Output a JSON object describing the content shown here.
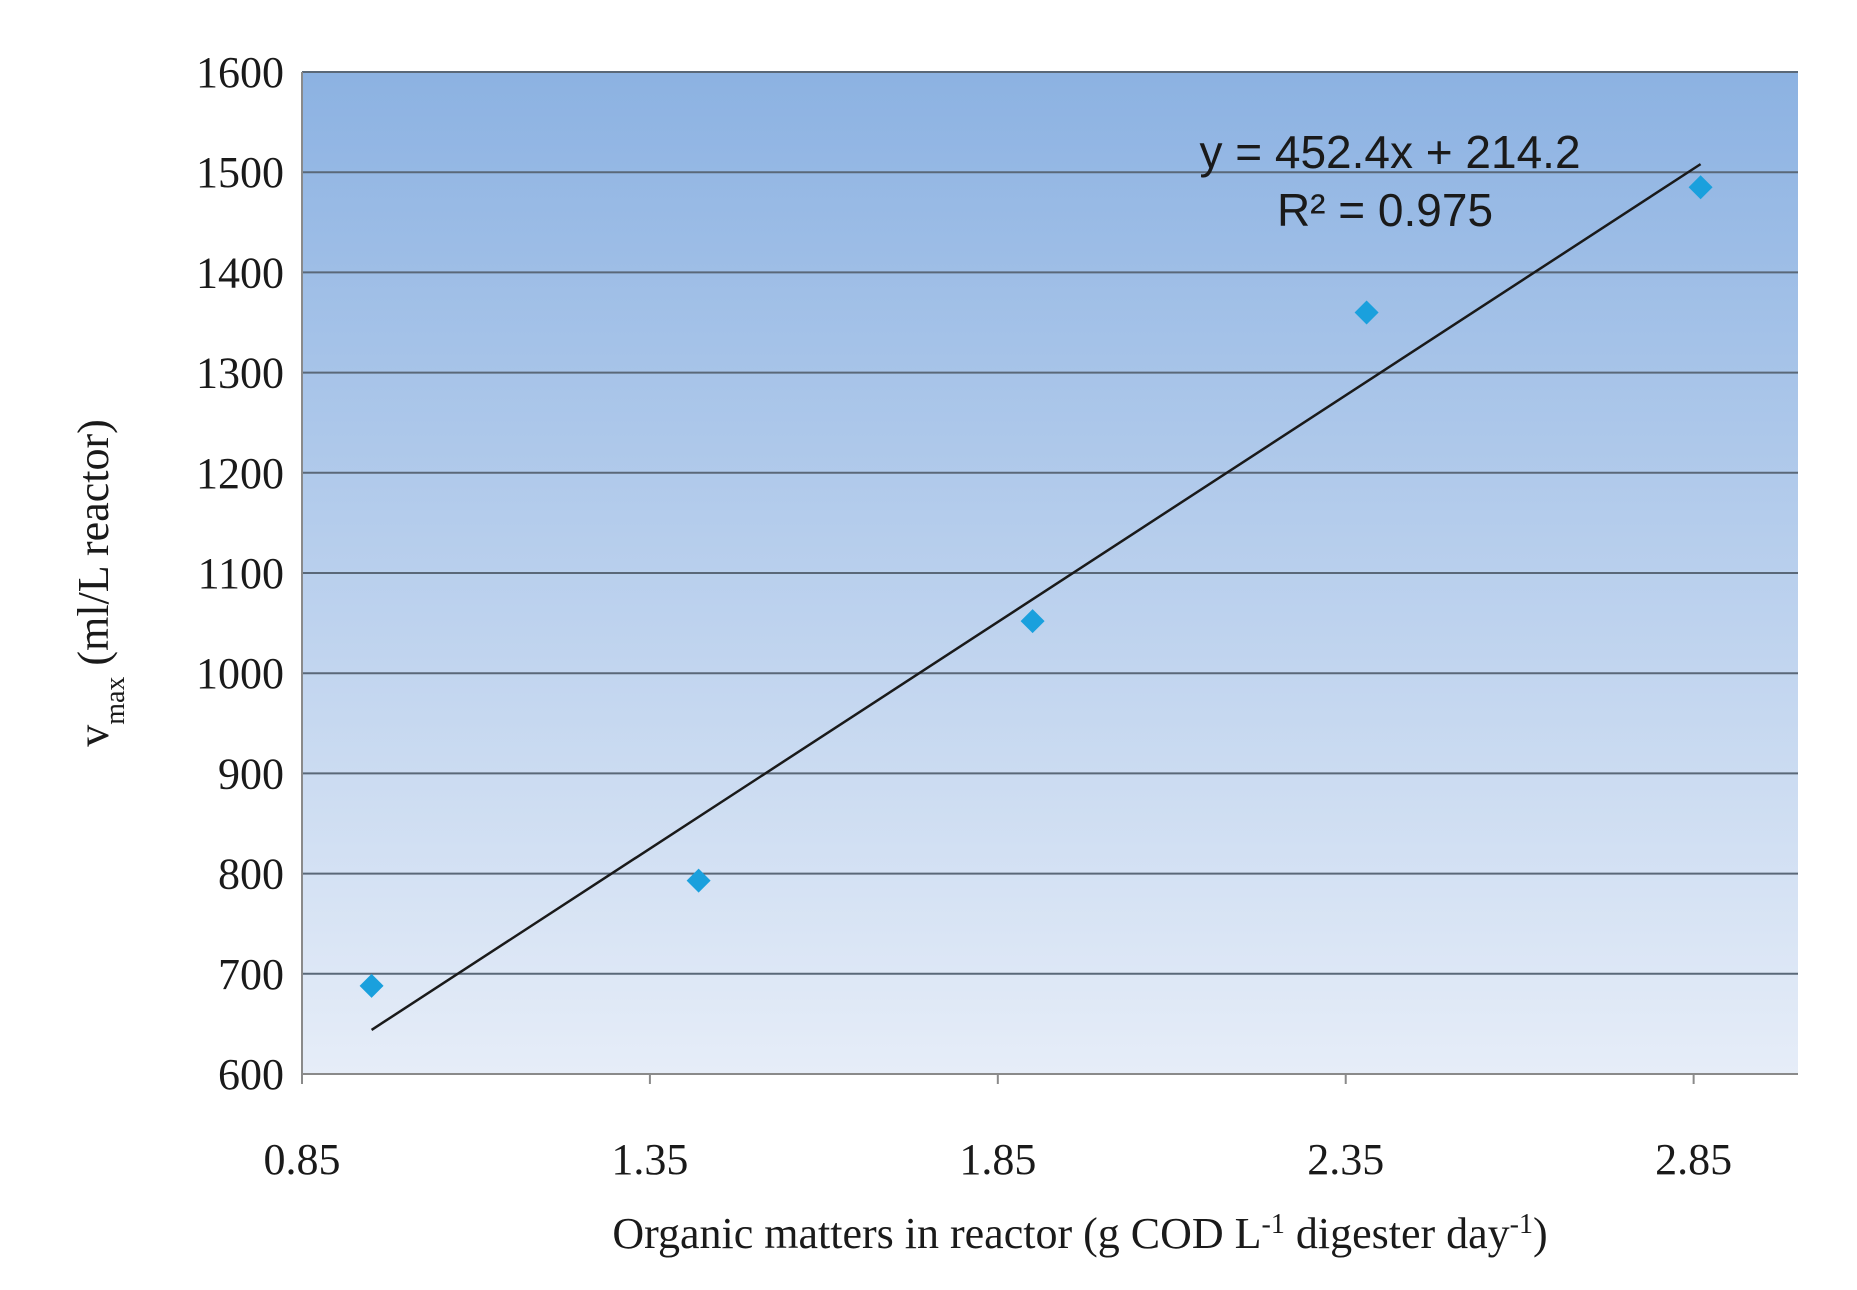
{
  "chart_data": {
    "type": "scatter",
    "title": "",
    "x": [
      0.95,
      1.42,
      1.9,
      2.38,
      2.86
    ],
    "y": [
      688,
      793,
      1052,
      1360,
      1485
    ],
    "xlim": [
      0.85,
      3.0
    ],
    "ylim": [
      600,
      1600
    ],
    "xticks": [
      0.85,
      1.35,
      1.85,
      2.35,
      2.85
    ],
    "xtick_labels": [
      "0.85",
      "1.35",
      "1.85",
      "2.35",
      "2.85"
    ],
    "yticks": [
      600,
      700,
      800,
      900,
      1000,
      1100,
      1200,
      1300,
      1400,
      1500,
      1600
    ],
    "ytick_labels": [
      "600",
      "700",
      "800",
      "900",
      "1000",
      "1100",
      "1200",
      "1300",
      "1400",
      "1500",
      "1600"
    ],
    "xlabel": {
      "main": "Organic matters in reactor (g COD L",
      "sup1": "-1",
      "mid": " digester day",
      "sup2": "-1",
      "end": ")"
    },
    "ylabel": {
      "main": "v",
      "sub": "max",
      "rest": " (ml/L reactor)"
    },
    "trendline": {
      "slope": 452.4,
      "intercept": 214.2,
      "x_start": 0.95,
      "x_end": 2.86,
      "equation": "y = 452.4x + 214.2",
      "r_squared": "R² = 0.975"
    },
    "grid": true,
    "marker": "diamond",
    "colors": {
      "marker": "#1aa0dd",
      "line": "#1a1a1a",
      "grid": "#5a6878",
      "bg_top": "#8cb2e2",
      "bg_bottom": "#e6edf8"
    }
  }
}
